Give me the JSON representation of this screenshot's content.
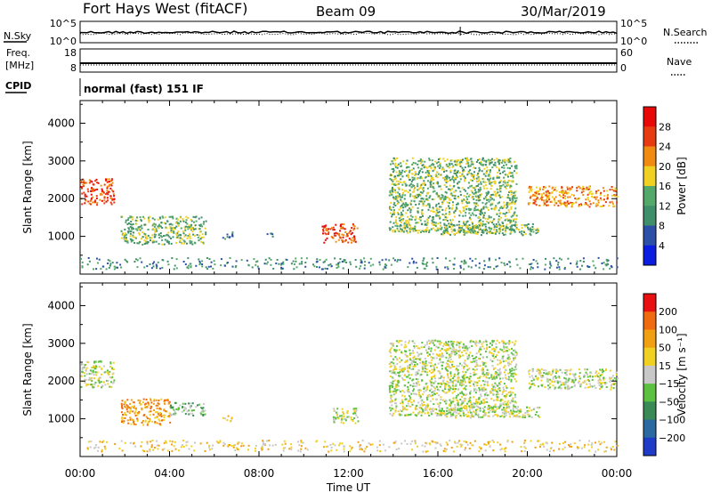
{
  "header": {
    "station": "Fort Hays West (fitACF)",
    "beam": "Beam 09",
    "date": "30/Mar/2019"
  },
  "status_panels": {
    "nsky_label": "N.Sky",
    "nsky_ticks": [
      "10^5",
      "10^0"
    ],
    "nsearch_label": "N.Search",
    "nsearch_ticks": [
      "10^5",
      "10^0"
    ],
    "freq_label_line1": "Freq.",
    "freq_label_line2": "[MHz]",
    "freq_ticks": [
      "18",
      "8"
    ],
    "nave_label": "Nave",
    "nave_ticks": [
      "60",
      "0"
    ],
    "cpid_label": "CPID",
    "cpid_text": "normal (fast) 151 IF"
  },
  "chart_data": [
    {
      "type": "heatmap",
      "name": "power",
      "ylabel": "Slant Range [km]",
      "ylim": [
        0,
        4600
      ],
      "yticks": [
        1000,
        2000,
        3000,
        4000
      ],
      "xlim": [
        0,
        24
      ],
      "colorbar_label": "Power [dB]",
      "colorbar_ticks": [
        "4",
        "8",
        "12",
        "16",
        "20",
        "24",
        "28"
      ],
      "colors": [
        "#0a1de0",
        "#2c4fa8",
        "#3f8f6a",
        "#54a86a",
        "#f0d020",
        "#f08a10",
        "#e83a10",
        "#e80808"
      ],
      "regions": [
        {
          "t0": 0.0,
          "t1": 1.5,
          "r0": 1850,
          "r1": 2550,
          "level": 6
        },
        {
          "t0": 1.8,
          "t1": 5.6,
          "r0": 800,
          "r1": 1550,
          "level": 3
        },
        {
          "t0": 6.3,
          "t1": 6.8,
          "r0": 950,
          "r1": 1150,
          "level": 2
        },
        {
          "t0": 8.3,
          "t1": 8.6,
          "r0": 950,
          "r1": 1100,
          "level": 1
        },
        {
          "t0": 10.8,
          "t1": 12.4,
          "r0": 850,
          "r1": 1350,
          "level": 6
        },
        {
          "t0": 13.8,
          "t1": 19.5,
          "r0": 1100,
          "r1": 3100,
          "level": 3
        },
        {
          "t0": 16.0,
          "t1": 20.5,
          "r0": 1050,
          "r1": 1350,
          "level": 3
        },
        {
          "t0": 20.0,
          "t1": 24.0,
          "r0": 1800,
          "r1": 2350,
          "level": 5
        },
        {
          "t0": 0.0,
          "t1": 24.0,
          "r0": 150,
          "r1": 450,
          "level": 2
        }
      ]
    },
    {
      "type": "heatmap",
      "name": "velocity",
      "ylabel": "Slant Range [km]",
      "xlabel": "Time UT",
      "ylim": [
        0,
        4600
      ],
      "yticks": [
        1000,
        2000,
        3000,
        4000
      ],
      "xlim": [
        0,
        24
      ],
      "xticks": [
        "00:00",
        "04:00",
        "08:00",
        "12:00",
        "16:00",
        "20:00",
        "00:00"
      ],
      "colorbar_label": "Velocity [m s⁻¹]",
      "colorbar_ticks": [
        "200",
        "100",
        "50",
        "15",
        "−15",
        "−50",
        "−100",
        "−200"
      ],
      "colors": [
        "#1f3cc8",
        "#2a6aa0",
        "#3a8a55",
        "#5cc040",
        "#c8c8c8",
        "#f0d020",
        "#f0a010",
        "#f06a10",
        "#e81010"
      ],
      "regions": [
        {
          "t0": 0.0,
          "t1": 1.5,
          "r0": 1850,
          "r1": 2550,
          "level": 4
        },
        {
          "t0": 1.8,
          "t1": 4.0,
          "r0": 850,
          "r1": 1550,
          "level": 6
        },
        {
          "t0": 4.0,
          "t1": 5.6,
          "r0": 1100,
          "r1": 1450,
          "level": 3
        },
        {
          "t0": 6.3,
          "t1": 6.8,
          "r0": 950,
          "r1": 1100,
          "level": 5
        },
        {
          "t0": 11.2,
          "t1": 12.4,
          "r0": 900,
          "r1": 1300,
          "level": 4
        },
        {
          "t0": 13.8,
          "t1": 19.5,
          "r0": 1100,
          "r1": 3100,
          "level": 4
        },
        {
          "t0": 16.0,
          "t1": 20.5,
          "r0": 1050,
          "r1": 1350,
          "level": 4
        },
        {
          "t0": 20.0,
          "t1": 24.0,
          "r0": 1800,
          "r1": 2350,
          "level": 4
        },
        {
          "t0": 0.0,
          "t1": 24.0,
          "r0": 150,
          "r1": 450,
          "level": 5
        }
      ]
    }
  ]
}
